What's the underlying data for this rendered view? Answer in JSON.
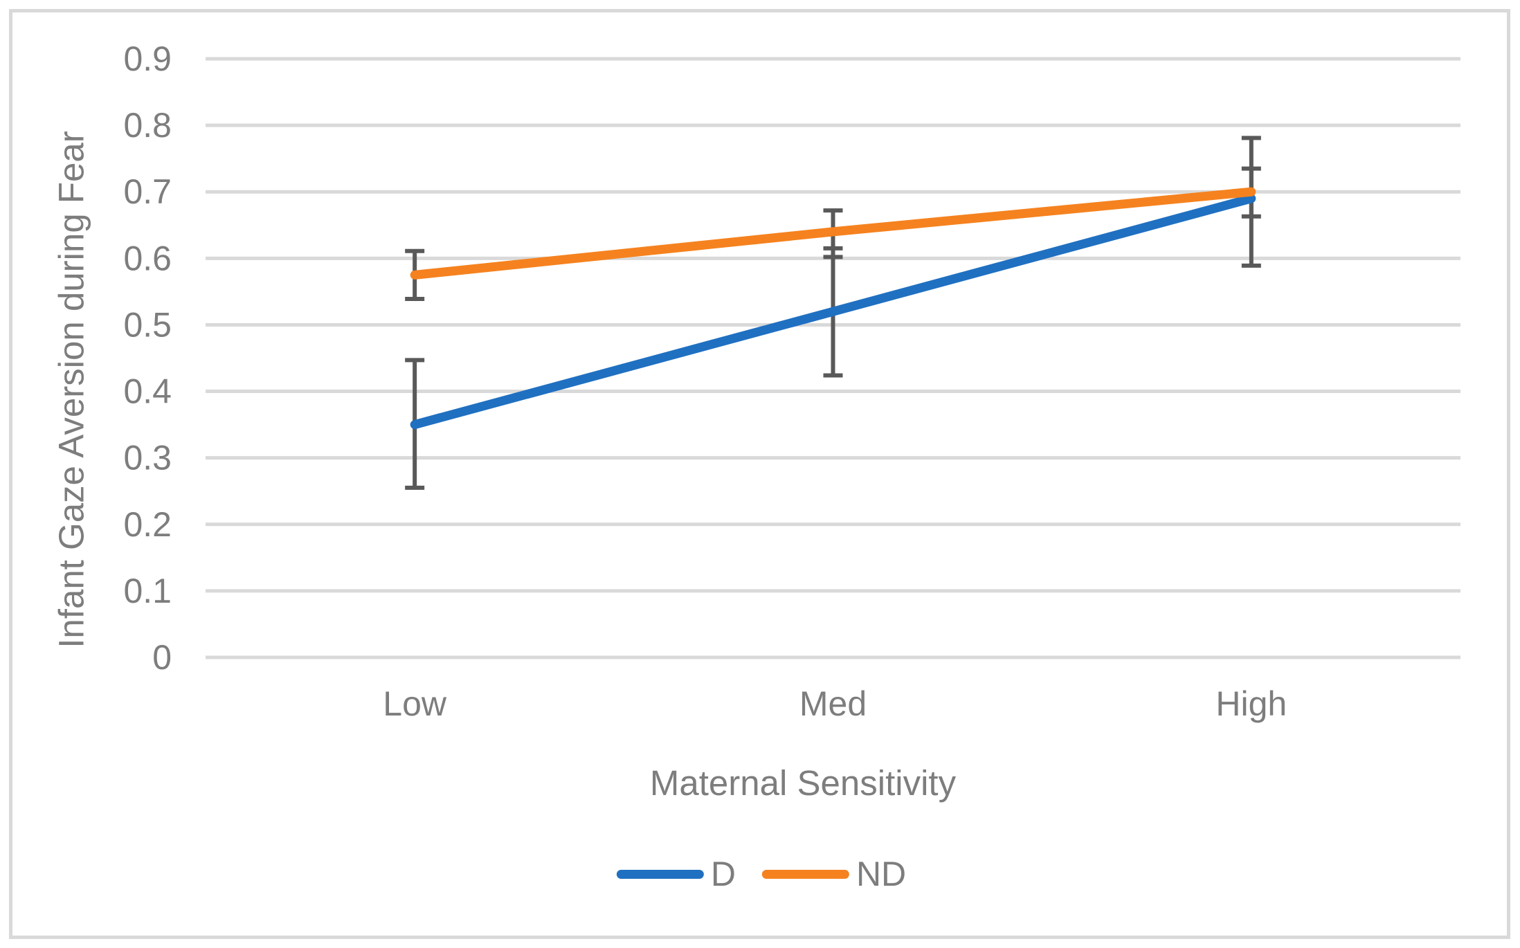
{
  "figure": {
    "background": "#ffffff",
    "border_color": "#d9d9d9",
    "text_color": "#7d7d7d"
  },
  "chart_data": {
    "type": "line",
    "title": "",
    "xlabel": "Maternal Sensitivity",
    "ylabel": "Infant Gaze Aversion during Fear",
    "categories": [
      "Low",
      "Med",
      "High"
    ],
    "series": [
      {
        "name": "D",
        "color": "#1f70c1",
        "values": [
          0.35,
          0.52,
          0.69
        ],
        "error_low": [
          0.255,
          0.424,
          0.589
        ],
        "error_high": [
          0.447,
          0.615,
          0.781
        ]
      },
      {
        "name": "ND",
        "color": "#f5821f",
        "values": [
          0.575,
          0.64,
          0.7
        ],
        "error_low": [
          0.539,
          0.602,
          0.663
        ],
        "error_high": [
          0.611,
          0.672,
          0.735
        ]
      }
    ],
    "yticks": [
      0,
      0.1,
      0.2,
      0.3,
      0.4,
      0.5,
      0.6,
      0.7,
      0.8,
      0.9
    ],
    "ytick_labels": [
      "0",
      "0.1",
      "0.2",
      "0.3",
      "0.4",
      "0.5",
      "0.6",
      "0.7",
      "0.8",
      "0.9"
    ],
    "ylim": [
      0,
      0.9
    ],
    "grid": true,
    "gridline_color": "#d9d9d9",
    "error_bar_color": "#595959",
    "legend_position": "bottom"
  }
}
